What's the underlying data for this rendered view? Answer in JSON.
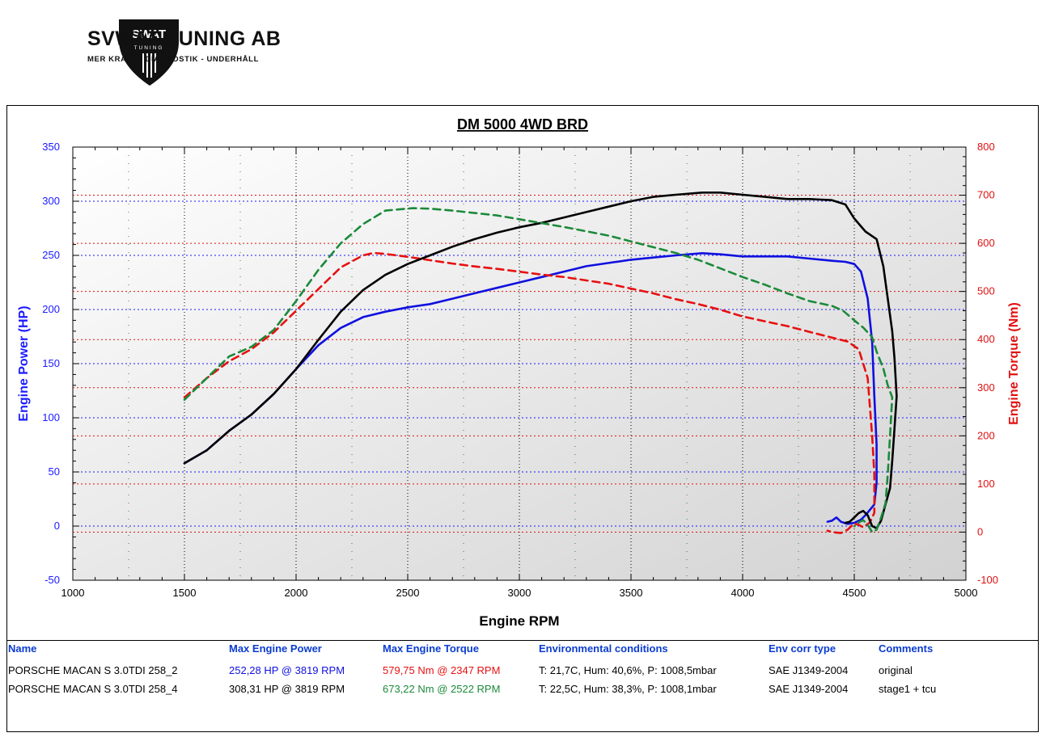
{
  "brand": {
    "logo_text": "SWAT",
    "logo_subtext": "TUNING",
    "name": "SVWAT TUNING AB",
    "tagline": "MER KRAFT - DIAGNOSTIK - UNDERHÅLL"
  },
  "colors": {
    "power_axis": "#1a1aff",
    "torque_axis": "#e01010",
    "header_text": "#0a3ccf",
    "run1_power": "#1010e0",
    "run1_torque": "#e81010",
    "run2_power": "#000000",
    "run2_torque": "#1b8a3a"
  },
  "chart_data": {
    "type": "line",
    "title": "DM 5000 4WD BRD",
    "xlabel": "Engine RPM",
    "ylabel_left": "Engine Power (HP)",
    "ylabel_right": "Engine Torque (Nm)",
    "xlim": [
      1000,
      5000
    ],
    "ylim_left": [
      -50,
      350
    ],
    "ylim_right": [
      -100,
      800
    ],
    "x_ticks": [
      "1000",
      "1500",
      "2000",
      "2500",
      "3000",
      "3500",
      "4000",
      "4500",
      "5000"
    ],
    "y_ticks_left": [
      "350",
      "300",
      "250",
      "200",
      "150",
      "100",
      "50",
      "0",
      "-50"
    ],
    "y_ticks_right": [
      "800",
      "700",
      "600",
      "500",
      "400",
      "300",
      "200",
      "100",
      "0",
      "-100"
    ],
    "grid": true,
    "series": [
      {
        "axis": "left",
        "style": "solid",
        "color": "#1010e0",
        "points": [
          [
            1500,
            58
          ],
          [
            1600,
            70
          ],
          [
            1700,
            88
          ],
          [
            1800,
            103
          ],
          [
            1900,
            122
          ],
          [
            2000,
            145
          ],
          [
            2100,
            167
          ],
          [
            2200,
            183
          ],
          [
            2300,
            193
          ],
          [
            2400,
            198
          ],
          [
            2500,
            202
          ],
          [
            2600,
            205
          ],
          [
            2700,
            210
          ],
          [
            2800,
            215
          ],
          [
            2900,
            220
          ],
          [
            3000,
            225
          ],
          [
            3100,
            230
          ],
          [
            3200,
            235
          ],
          [
            3300,
            240
          ],
          [
            3400,
            243
          ],
          [
            3500,
            246
          ],
          [
            3600,
            248
          ],
          [
            3700,
            250
          ],
          [
            3819,
            252
          ],
          [
            3900,
            251
          ],
          [
            4000,
            249
          ],
          [
            4100,
            249
          ],
          [
            4200,
            249
          ],
          [
            4300,
            247
          ],
          [
            4400,
            245
          ],
          [
            4460,
            244
          ],
          [
            4500,
            242
          ],
          [
            4530,
            235
          ],
          [
            4560,
            210
          ],
          [
            4580,
            170
          ],
          [
            4590,
            120
          ],
          [
            4600,
            75
          ],
          [
            4600,
            40
          ],
          [
            4590,
            20
          ],
          [
            4570,
            15
          ],
          [
            4550,
            10
          ],
          [
            4530,
            6
          ],
          [
            4500,
            3
          ],
          [
            4470,
            2
          ],
          [
            4440,
            4
          ],
          [
            4420,
            8
          ],
          [
            4400,
            5
          ],
          [
            4380,
            4
          ]
        ]
      },
      {
        "axis": "right",
        "style": "dashed",
        "color": "#e81010",
        "points": [
          [
            1500,
            280
          ],
          [
            1600,
            320
          ],
          [
            1700,
            355
          ],
          [
            1800,
            380
          ],
          [
            1900,
            415
          ],
          [
            2000,
            460
          ],
          [
            2100,
            505
          ],
          [
            2200,
            550
          ],
          [
            2300,
            575
          ],
          [
            2347,
            580
          ],
          [
            2400,
            578
          ],
          [
            2500,
            572
          ],
          [
            2600,
            565
          ],
          [
            2700,
            558
          ],
          [
            2800,
            552
          ],
          [
            2900,
            547
          ],
          [
            3000,
            541
          ],
          [
            3100,
            535
          ],
          [
            3200,
            530
          ],
          [
            3300,
            523
          ],
          [
            3400,
            516
          ],
          [
            3500,
            506
          ],
          [
            3600,
            496
          ],
          [
            3700,
            484
          ],
          [
            3800,
            474
          ],
          [
            3900,
            462
          ],
          [
            4000,
            448
          ],
          [
            4100,
            438
          ],
          [
            4200,
            428
          ],
          [
            4300,
            416
          ],
          [
            4400,
            404
          ],
          [
            4470,
            396
          ],
          [
            4520,
            380
          ],
          [
            4560,
            320
          ],
          [
            4580,
            200
          ],
          [
            4590,
            120
          ],
          [
            4590,
            40
          ],
          [
            4570,
            20
          ],
          [
            4540,
            10
          ],
          [
            4520,
            15
          ],
          [
            4500,
            18
          ],
          [
            4470,
            5
          ],
          [
            4440,
            -2
          ],
          [
            4400,
            0
          ],
          [
            4380,
            3
          ]
        ]
      },
      {
        "axis": "left",
        "style": "solid",
        "color": "#000000",
        "points": [
          [
            1500,
            58
          ],
          [
            1600,
            70
          ],
          [
            1700,
            88
          ],
          [
            1800,
            103
          ],
          [
            1900,
            122
          ],
          [
            2000,
            145
          ],
          [
            2100,
            172
          ],
          [
            2200,
            198
          ],
          [
            2300,
            218
          ],
          [
            2400,
            232
          ],
          [
            2500,
            242
          ],
          [
            2600,
            250
          ],
          [
            2700,
            258
          ],
          [
            2800,
            265
          ],
          [
            2900,
            271
          ],
          [
            3000,
            276
          ],
          [
            3100,
            280
          ],
          [
            3200,
            285
          ],
          [
            3300,
            290
          ],
          [
            3400,
            295
          ],
          [
            3500,
            300
          ],
          [
            3600,
            304
          ],
          [
            3700,
            306
          ],
          [
            3819,
            308
          ],
          [
            3900,
            308
          ],
          [
            4000,
            306
          ],
          [
            4100,
            304
          ],
          [
            4200,
            302
          ],
          [
            4300,
            302
          ],
          [
            4400,
            301
          ],
          [
            4460,
            297
          ],
          [
            4500,
            284
          ],
          [
            4550,
            272
          ],
          [
            4600,
            265
          ],
          [
            4630,
            240
          ],
          [
            4650,
            210
          ],
          [
            4670,
            180
          ],
          [
            4680,
            155
          ],
          [
            4690,
            120
          ],
          [
            4680,
            90
          ],
          [
            4670,
            60
          ],
          [
            4660,
            35
          ],
          [
            4640,
            20
          ],
          [
            4620,
            5
          ],
          [
            4600,
            -2
          ],
          [
            4580,
            0
          ],
          [
            4560,
            10
          ],
          [
            4540,
            14
          ],
          [
            4520,
            12
          ],
          [
            4500,
            8
          ],
          [
            4480,
            4
          ],
          [
            4460,
            3
          ]
        ]
      },
      {
        "axis": "right",
        "style": "dashed",
        "color": "#1b8a3a",
        "points": [
          [
            1500,
            275
          ],
          [
            1600,
            320
          ],
          [
            1700,
            365
          ],
          [
            1800,
            385
          ],
          [
            1900,
            420
          ],
          [
            2000,
            480
          ],
          [
            2100,
            545
          ],
          [
            2200,
            600
          ],
          [
            2300,
            640
          ],
          [
            2400,
            668
          ],
          [
            2522,
            673
          ],
          [
            2600,
            672
          ],
          [
            2700,
            668
          ],
          [
            2800,
            663
          ],
          [
            2900,
            658
          ],
          [
            3000,
            650
          ],
          [
            3100,
            642
          ],
          [
            3200,
            634
          ],
          [
            3300,
            625
          ],
          [
            3400,
            616
          ],
          [
            3500,
            604
          ],
          [
            3600,
            592
          ],
          [
            3700,
            580
          ],
          [
            3800,
            566
          ],
          [
            3900,
            548
          ],
          [
            4000,
            530
          ],
          [
            4100,
            514
          ],
          [
            4200,
            496
          ],
          [
            4300,
            480
          ],
          [
            4400,
            470
          ],
          [
            4450,
            460
          ],
          [
            4500,
            440
          ],
          [
            4540,
            425
          ],
          [
            4580,
            405
          ],
          [
            4600,
            375
          ],
          [
            4630,
            340
          ],
          [
            4650,
            305
          ],
          [
            4670,
            280
          ],
          [
            4660,
            200
          ],
          [
            4650,
            120
          ],
          [
            4640,
            60
          ],
          [
            4620,
            30
          ],
          [
            4600,
            5
          ],
          [
            4580,
            0
          ],
          [
            4560,
            15
          ],
          [
            4540,
            25
          ],
          [
            4520,
            20
          ],
          [
            4500,
            12
          ]
        ]
      }
    ]
  },
  "table": {
    "headers": [
      "Name",
      "Max Engine Power",
      "Max Engine Torque",
      "Environmental conditions",
      "Env corr type",
      "Comments"
    ],
    "rows": [
      [
        "PORSCHE MACAN S 3.0TDI 258_2",
        "252,28 HP @ 3819 RPM",
        "579,75 Nm @ 2347 RPM",
        "T: 21,7C, Hum: 40,6%, P: 1008,5mbar",
        "SAE J1349-2004",
        "original"
      ],
      [
        "PORSCHE MACAN S 3.0TDI 258_4",
        "308,31 HP @ 3819 RPM",
        "673,22 Nm @ 2522 RPM",
        "T: 22,5C, Hum: 38,3%, P: 1008,1mbar",
        "SAE J1349-2004",
        "stage1 + tcu"
      ]
    ]
  }
}
